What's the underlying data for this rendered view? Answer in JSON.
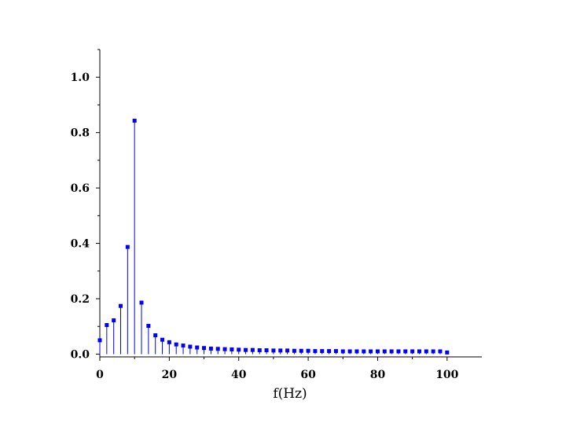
{
  "chart_data": {
    "type": "stem",
    "title": "",
    "xlabel": "f(Hz)",
    "ylabel": "",
    "xlim": [
      0,
      110
    ],
    "ylim": [
      -0.01,
      1.1
    ],
    "x_ticks": [
      0,
      20,
      40,
      60,
      80,
      100
    ],
    "x_tick_labels": [
      "0",
      "20",
      "40",
      "60",
      "80",
      "100"
    ],
    "y_ticks": [
      0,
      0.2,
      0.4,
      0.6,
      0.8,
      1.0
    ],
    "y_tick_labels": [
      "0.0",
      "0.2",
      "0.4",
      "0.6",
      "0.8",
      "1.0"
    ],
    "grid": false,
    "series": [
      {
        "color": "#0000ff",
        "marker": "square",
        "x": [
          0,
          2,
          4,
          6,
          8,
          10,
          12,
          14,
          16,
          18,
          20,
          22,
          24,
          26,
          28,
          30,
          32,
          34,
          36,
          38,
          40,
          42,
          44,
          46,
          48,
          50,
          52,
          54,
          56,
          58,
          60,
          62,
          64,
          66,
          68,
          70,
          72,
          74,
          76,
          78,
          80,
          82,
          84,
          86,
          88,
          90,
          92,
          94,
          96,
          98,
          100
        ],
        "y": [
          0.05,
          0.105,
          0.122,
          0.174,
          0.387,
          0.843,
          0.186,
          0.102,
          0.068,
          0.052,
          0.043,
          0.035,
          0.031,
          0.027,
          0.024,
          0.022,
          0.02,
          0.019,
          0.018,
          0.017,
          0.016,
          0.015,
          0.015,
          0.014,
          0.014,
          0.013,
          0.013,
          0.013,
          0.012,
          0.012,
          0.012,
          0.011,
          0.011,
          0.011,
          0.011,
          0.01,
          0.01,
          0.01,
          0.01,
          0.01,
          0.01,
          0.01,
          0.01,
          0.01,
          0.01,
          0.01,
          0.01,
          0.01,
          0.01,
          0.01,
          0.006
        ]
      }
    ]
  }
}
